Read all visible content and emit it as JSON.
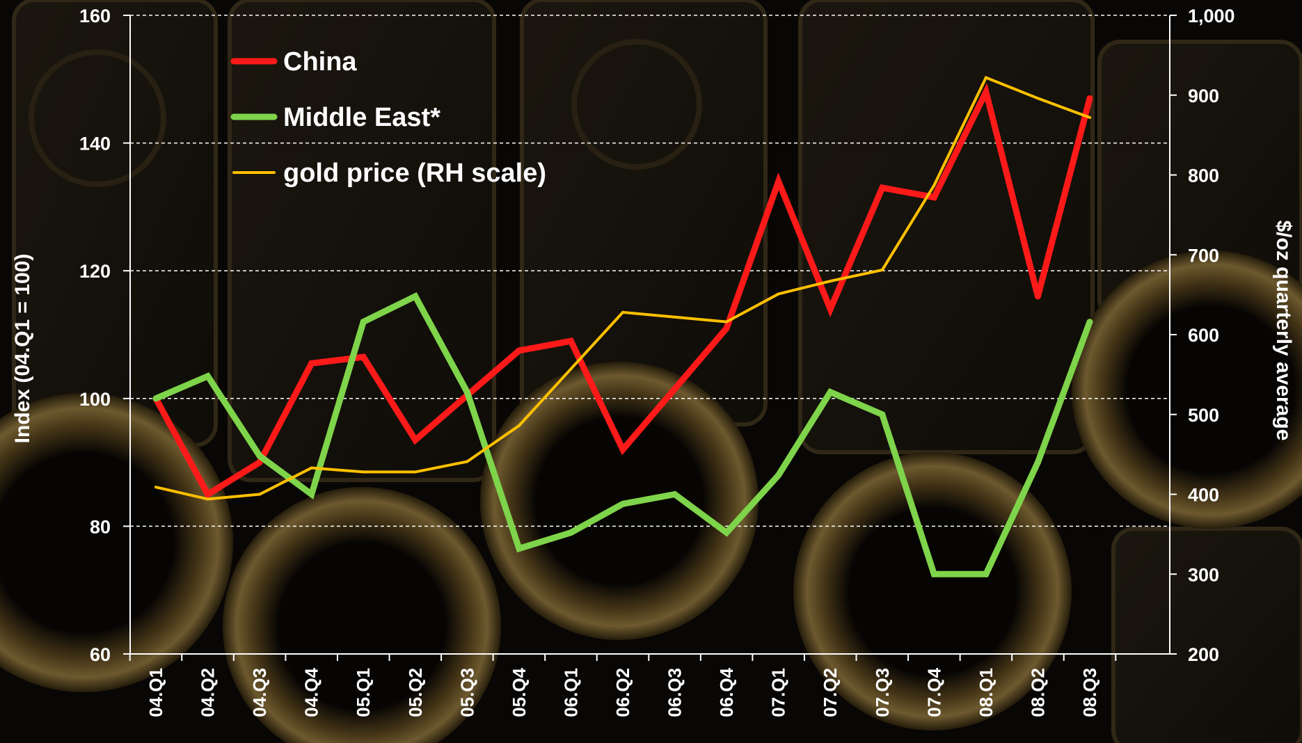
{
  "chart_data": {
    "type": "line",
    "categories": [
      "04.Q1",
      "04.Q2",
      "04.Q3",
      "04.Q4",
      "05.Q1",
      "05.Q2",
      "05.Q3",
      "05.Q4",
      "06.Q1",
      "06.Q2",
      "06.Q3",
      "06.Q4",
      "07.Q1",
      "07.Q2",
      "07.Q3",
      "07.Q4",
      "08.Q1",
      "08.Q2",
      "08.Q3"
    ],
    "ylabel": "Index (04.Q1 = 100)",
    "y2label": "$/oz quarterly average",
    "ylim": [
      60,
      160
    ],
    "y2lim": [
      200,
      1000
    ],
    "yticks": [
      "60",
      "80",
      "100",
      "120",
      "140",
      "160"
    ],
    "y2ticks": [
      "200",
      "300",
      "400",
      "500",
      "600",
      "700",
      "800",
      "900",
      "1,000"
    ],
    "grid": true,
    "legend_position": "top-left",
    "series": [
      {
        "name": "China",
        "color": "#ff1a1a",
        "axis": "left",
        "values": [
          100,
          85,
          90,
          105.5,
          106.5,
          93.5,
          100.5,
          107.5,
          109,
          92,
          101.5,
          111,
          134,
          114,
          133,
          131.5,
          148,
          116,
          147
        ]
      },
      {
        "name": "Middle East*",
        "color": "#7ed44a",
        "axis": "left",
        "values": [
          100,
          103.5,
          91,
          85,
          112,
          116,
          101,
          76.5,
          79,
          83.5,
          85,
          79,
          88,
          101,
          97.5,
          72.5,
          72.5,
          90,
          112
        ]
      },
      {
        "name": "gold price (RH scale)",
        "color": "#ffc000",
        "axis": "right",
        "values": [
          409,
          394,
          400,
          433,
          428,
          428,
          441,
          486,
          557,
          628,
          622,
          616,
          651,
          667,
          681,
          787,
          922,
          896,
          872
        ]
      }
    ]
  }
}
